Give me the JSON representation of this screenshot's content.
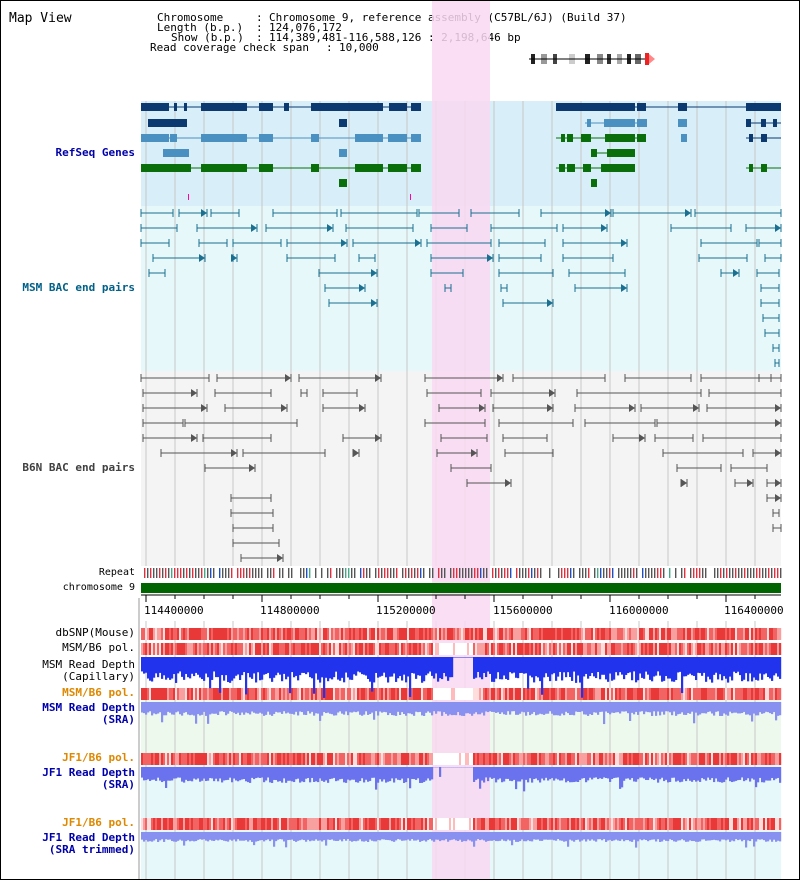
{
  "title": "Map View",
  "header": {
    "chromosome_key": "Chromosome",
    "chromosome_value": "Chromosome 9, reference assembly (C57BL/6J) (Build 37)",
    "length_key": "Length (b.p.)",
    "length_value": "124,076,172",
    "show_key": "Show (b.p.)",
    "show_value": "114,389,481-116,588,126 : 2,198,646 bp",
    "coverage_key": "Read coverage check span",
    "coverage_value": "10,000"
  },
  "tracks": {
    "refseq": "RefSeq Genes",
    "msm_bac": "MSM BAC end pairs",
    "b6n_bac": "B6N BAC end pairs",
    "repeat": "Repeat",
    "chromosome": "chromosome 9",
    "dbsnp": "dbSNP(Mouse)",
    "msm_pol1": "MSM/B6 pol.",
    "msm_depth_cap_1": "MSM Read Depth",
    "msm_depth_cap_2": "(Capillary)",
    "msm_pol2": "MSM/B6 pol.",
    "msm_depth_sra_1": "MSM Read Depth",
    "msm_depth_sra_2": "(SRA)",
    "jf1_pol1": "JF1/B6 pol.",
    "jf1_depth_1": "JF1 Read Depth",
    "jf1_depth_2": "(SRA)",
    "jf1_pol2": "JF1/B6 pol.",
    "jf1_depth_trim_1": "JF1 Read Depth",
    "jf1_depth_trim_2": "(SRA trimmed)"
  },
  "axis": {
    "ticks": [
      "114400000",
      "114800000",
      "115200000",
      "115600000",
      "116000000",
      "116400000"
    ]
  },
  "colors": {
    "refseq_bg": "#d8eef9",
    "msm_bg": "#e6f8fa",
    "b6n_bg": "#f4f4f4",
    "highlight": "#f9d8f1",
    "refseq_label": "#0000aa",
    "msm_label": "#006088",
    "b6n_label": "#404040",
    "orange_label": "#dd8800",
    "blue_label": "#0000aa",
    "chromosome_bar": "#006400"
  }
}
